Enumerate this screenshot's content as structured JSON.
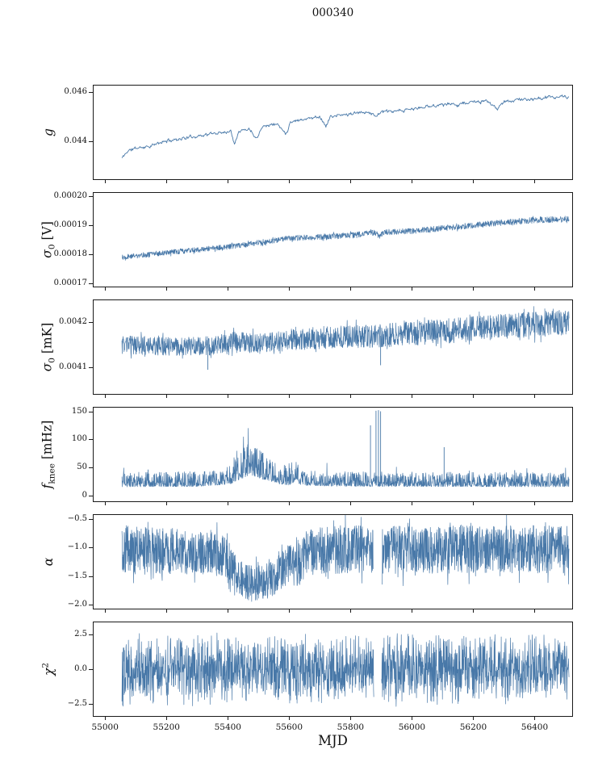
{
  "chart_data": {
    "type": "line",
    "title": "000340",
    "xlabel": "MJD",
    "line_color": "#4878a8",
    "xlim": [
      54960,
      56525
    ],
    "x_data_range": [
      55055,
      56512
    ],
    "grid": false,
    "legend": "none",
    "xticks": [
      {
        "v": 55000,
        "label": "55000"
      },
      {
        "v": 55200,
        "label": "55200"
      },
      {
        "v": 55400,
        "label": "55400"
      },
      {
        "v": 55600,
        "label": "55600"
      },
      {
        "v": 55800,
        "label": "55800"
      },
      {
        "v": 56000,
        "label": "56000"
      },
      {
        "v": 56200,
        "label": "56200"
      },
      {
        "v": 56400,
        "label": "56400"
      }
    ],
    "panels": [
      {
        "name": "g",
        "label": {
          "main": "g",
          "sub": "",
          "sup": "",
          "rest": ""
        },
        "ylim": [
          0.0424,
          0.0463
        ],
        "yticks": [
          {
            "v": 0.046,
            "label": "0.046"
          },
          {
            "v": 0.044,
            "label": "0.044"
          }
        ],
        "style": "smooth",
        "seed": 11,
        "samples": 720,
        "noise_amp": 5e-05,
        "amp": [
          [
            55055,
            5e-05
          ],
          [
            56510,
            5e-05
          ]
        ],
        "trend": [
          [
            55055,
            0.0433
          ],
          [
            55075,
            0.0436
          ],
          [
            55100,
            0.0437
          ],
          [
            55150,
            0.0438
          ],
          [
            55200,
            0.044
          ],
          [
            55250,
            0.0441
          ],
          [
            55300,
            0.0442
          ],
          [
            55350,
            0.0443
          ],
          [
            55410,
            0.0444
          ],
          [
            55422,
            0.0439
          ],
          [
            55435,
            0.0444
          ],
          [
            55470,
            0.0445
          ],
          [
            55495,
            0.0441
          ],
          [
            55510,
            0.0446
          ],
          [
            55560,
            0.0447
          ],
          [
            55590,
            0.0443
          ],
          [
            55605,
            0.0448
          ],
          [
            55650,
            0.0449
          ],
          [
            55700,
            0.045
          ],
          [
            55720,
            0.0446
          ],
          [
            55735,
            0.045
          ],
          [
            55800,
            0.0451
          ],
          [
            55860,
            0.0452
          ],
          [
            55880,
            0.045
          ],
          [
            55900,
            0.0452
          ],
          [
            55950,
            0.0452
          ],
          [
            56000,
            0.0453
          ],
          [
            56050,
            0.0454
          ],
          [
            56100,
            0.0455
          ],
          [
            56150,
            0.0455
          ],
          [
            56200,
            0.0456
          ],
          [
            56250,
            0.0456
          ],
          [
            56280,
            0.0453
          ],
          [
            56300,
            0.0456
          ],
          [
            56350,
            0.0457
          ],
          [
            56400,
            0.0457
          ],
          [
            56450,
            0.0458
          ],
          [
            56510,
            0.0458
          ]
        ],
        "spikes": [],
        "gaps": []
      },
      {
        "name": "sigma0_V",
        "label": {
          "main": "σ",
          "sub": "0",
          "sup": "",
          "rest": " [V]"
        },
        "ylim": [
          0.0001685,
          0.0002015
        ],
        "yticks": [
          {
            "v": 0.0002,
            "label": "0.00020"
          },
          {
            "v": 0.00019,
            "label": "0.00019"
          },
          {
            "v": 0.00018,
            "label": "0.00018"
          },
          {
            "v": 0.00017,
            "label": "0.00017"
          }
        ],
        "style": "band-uniform",
        "seed": 22,
        "samples": 1600,
        "amp": [
          [
            55055,
            9e-07
          ],
          [
            56000,
            1e-06
          ],
          [
            56510,
            1.1e-06
          ]
        ],
        "trend": [
          [
            55055,
            0.000179
          ],
          [
            55200,
            0.0001805
          ],
          [
            55400,
            0.0001825
          ],
          [
            55600,
            0.0001855
          ],
          [
            55700,
            0.000186
          ],
          [
            55800,
            0.0001865
          ],
          [
            55880,
            0.0001875
          ],
          [
            55895,
            0.0001862
          ],
          [
            55910,
            0.0001876
          ],
          [
            56000,
            0.000188
          ],
          [
            56100,
            0.000189
          ],
          [
            56200,
            0.00019
          ],
          [
            56300,
            0.000191
          ],
          [
            56400,
            0.0001918
          ],
          [
            56510,
            0.0001922
          ]
        ],
        "spikes": [
          {
            "x": 55895,
            "y": 0.0001856
          }
        ],
        "gaps": []
      },
      {
        "name": "sigma0_mK",
        "label": {
          "main": "σ",
          "sub": "0",
          "sup": "",
          "rest": " [mK]"
        },
        "ylim": [
          0.00404,
          0.00425
        ],
        "yticks": [
          {
            "v": 0.0042,
            "label": "0.0042"
          },
          {
            "v": 0.0041,
            "label": "0.0041"
          }
        ],
        "style": "band-uniform",
        "seed": 33,
        "samples": 1700,
        "amp": [
          [
            55055,
            2e-05
          ],
          [
            55500,
            2.2e-05
          ],
          [
            55900,
            2.6e-05
          ],
          [
            56200,
            2.8e-05
          ],
          [
            56510,
            2.8e-05
          ]
        ],
        "trend": [
          [
            55055,
            0.00415
          ],
          [
            55150,
            0.004148
          ],
          [
            55250,
            0.004146
          ],
          [
            55350,
            0.004148
          ],
          [
            55420,
            0.004158
          ],
          [
            55500,
            0.004152
          ],
          [
            55600,
            0.00416
          ],
          [
            55700,
            0.004165
          ],
          [
            55800,
            0.004168
          ],
          [
            55900,
            0.00417
          ],
          [
            56000,
            0.004175
          ],
          [
            56100,
            0.00418
          ],
          [
            56200,
            0.004185
          ],
          [
            56300,
            0.00419
          ],
          [
            56400,
            0.004195
          ],
          [
            56510,
            0.0042
          ]
        ],
        "spikes": [
          {
            "x": 55335,
            "y": 0.004095
          },
          {
            "x": 55898,
            "y": 0.004105
          }
        ],
        "gaps": []
      },
      {
        "name": "f_knee",
        "label": {
          "main": "f",
          "sub": "knee",
          "sup": "",
          "rest": " [mHz]"
        },
        "ylim": [
          -12,
          158
        ],
        "yticks": [
          {
            "v": 150,
            "label": "150"
          },
          {
            "v": 100,
            "label": "100"
          },
          {
            "v": 50,
            "label": "50"
          },
          {
            "v": 0,
            "label": "0"
          }
        ],
        "style": "band-skew",
        "seed": 44,
        "samples": 1700,
        "ymin_clamp": 7,
        "amp": [
          [
            55055,
            13
          ],
          [
            55390,
            14
          ],
          [
            55440,
            30
          ],
          [
            55500,
            27
          ],
          [
            55560,
            17
          ],
          [
            55610,
            20
          ],
          [
            55660,
            13
          ],
          [
            56510,
            13
          ]
        ],
        "trend": [
          [
            55055,
            21
          ],
          [
            55300,
            22
          ],
          [
            55400,
            26
          ],
          [
            55435,
            40
          ],
          [
            55465,
            48
          ],
          [
            55495,
            44
          ],
          [
            55530,
            36
          ],
          [
            55570,
            28
          ],
          [
            55600,
            27
          ],
          [
            55618,
            33
          ],
          [
            55645,
            24
          ],
          [
            55750,
            22
          ],
          [
            56510,
            21
          ]
        ],
        "spikes": [
          {
            "x": 55140,
            "y": 46
          },
          {
            "x": 55865,
            "y": 125
          },
          {
            "x": 55883,
            "y": 151
          },
          {
            "x": 55891,
            "y": 152
          },
          {
            "x": 55898,
            "y": 150
          },
          {
            "x": 56105,
            "y": 86
          },
          {
            "x": 56335,
            "y": 45
          }
        ],
        "gaps": []
      },
      {
        "name": "alpha",
        "label": {
          "main": "α",
          "sub": "",
          "sup": "",
          "rest": ""
        },
        "ylim": [
          -2.08,
          -0.42
        ],
        "yticks": [
          {
            "v": -0.5,
            "label": "−0.5"
          },
          {
            "v": -1.0,
            "label": "−1.0"
          },
          {
            "v": -1.5,
            "label": "−1.5"
          },
          {
            "v": -2.0,
            "label": "−2.0"
          }
        ],
        "style": "band-uniform",
        "seed": 55,
        "samples": 2000,
        "amp": [
          [
            55055,
            0.42
          ],
          [
            55380,
            0.38
          ],
          [
            55430,
            0.3
          ],
          [
            55470,
            0.32
          ],
          [
            55540,
            0.32
          ],
          [
            55580,
            0.35
          ],
          [
            55640,
            0.4
          ],
          [
            55700,
            0.42
          ],
          [
            56510,
            0.42
          ]
        ],
        "trend": [
          [
            55055,
            -1.03
          ],
          [
            55320,
            -1.08
          ],
          [
            55360,
            -1.12
          ],
          [
            55400,
            -1.2
          ],
          [
            55430,
            -1.5
          ],
          [
            55465,
            -1.62
          ],
          [
            55500,
            -1.63
          ],
          [
            55540,
            -1.58
          ],
          [
            55575,
            -1.42
          ],
          [
            55600,
            -1.25
          ],
          [
            55625,
            -1.32
          ],
          [
            55655,
            -1.12
          ],
          [
            55700,
            -1.04
          ],
          [
            56510,
            -1.03
          ]
        ],
        "spikes": [],
        "gaps": [
          [
            55874,
            55903
          ]
        ]
      },
      {
        "name": "chi2",
        "label": {
          "main": "χ",
          "sub": "",
          "sup": "2",
          "rest": ""
        },
        "ylim": [
          -3.4,
          3.4
        ],
        "yticks": [
          {
            "v": 2.5,
            "label": "2.5"
          },
          {
            "v": 0.0,
            "label": "0.0"
          },
          {
            "v": -2.5,
            "label": "−2.5"
          }
        ],
        "style": "band-tri",
        "seed": 66,
        "samples": 2000,
        "amp": [
          [
            55055,
            1.35
          ],
          [
            56510,
            1.35
          ]
        ],
        "trend": [
          [
            55055,
            0
          ],
          [
            56510,
            0
          ]
        ],
        "spikes": [],
        "gaps": [
          [
            55876,
            55901
          ]
        ]
      }
    ]
  }
}
